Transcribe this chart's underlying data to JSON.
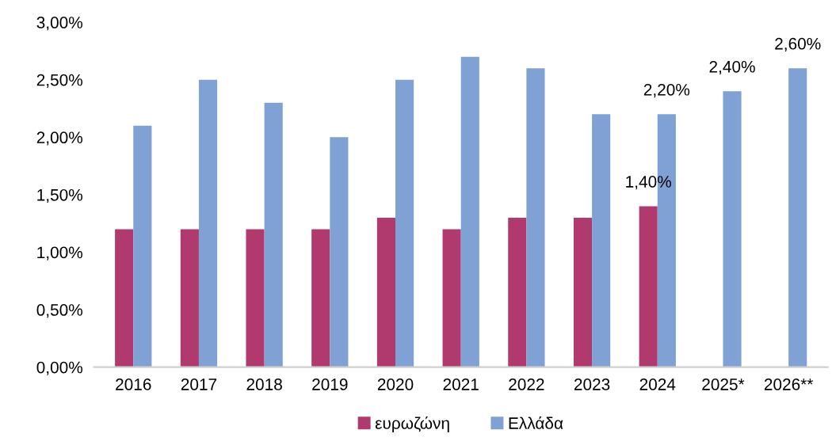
{
  "chart_data": {
    "type": "bar",
    "categories": [
      "2016",
      "2017",
      "2018",
      "2019",
      "2020",
      "2021",
      "2022",
      "2023",
      "2024",
      "2025*",
      "2026**"
    ],
    "series": [
      {
        "name": "ευρωζώνη",
        "color": "#b03a6e",
        "values": [
          1.2,
          1.2,
          1.2,
          1.2,
          1.3,
          1.2,
          1.3,
          1.3,
          1.4,
          null,
          null
        ],
        "value_labels": [
          null,
          null,
          null,
          null,
          null,
          null,
          null,
          null,
          "1,40%",
          null,
          null
        ]
      },
      {
        "name": "Ελλάδα",
        "color": "#7fa1d4",
        "values": [
          2.1,
          2.5,
          2.3,
          2.0,
          2.5,
          2.7,
          2.6,
          2.2,
          2.2,
          2.4,
          2.6
        ],
        "value_labels": [
          null,
          null,
          null,
          null,
          null,
          null,
          null,
          null,
          "2,20%",
          "2,40%",
          "2,60%"
        ]
      }
    ],
    "ylim": [
      0,
      3
    ],
    "yticks": [
      {
        "value": 0,
        "label": "0,00%"
      },
      {
        "value": 0.5,
        "label": "0,50%"
      },
      {
        "value": 1,
        "label": "1,00%"
      },
      {
        "value": 1.5,
        "label": "1,50%"
      },
      {
        "value": 2,
        "label": "2,00%"
      },
      {
        "value": 2.5,
        "label": "2,50%"
      },
      {
        "value": 3,
        "label": "3,00%"
      }
    ],
    "grid": false,
    "legend": "bottom"
  }
}
